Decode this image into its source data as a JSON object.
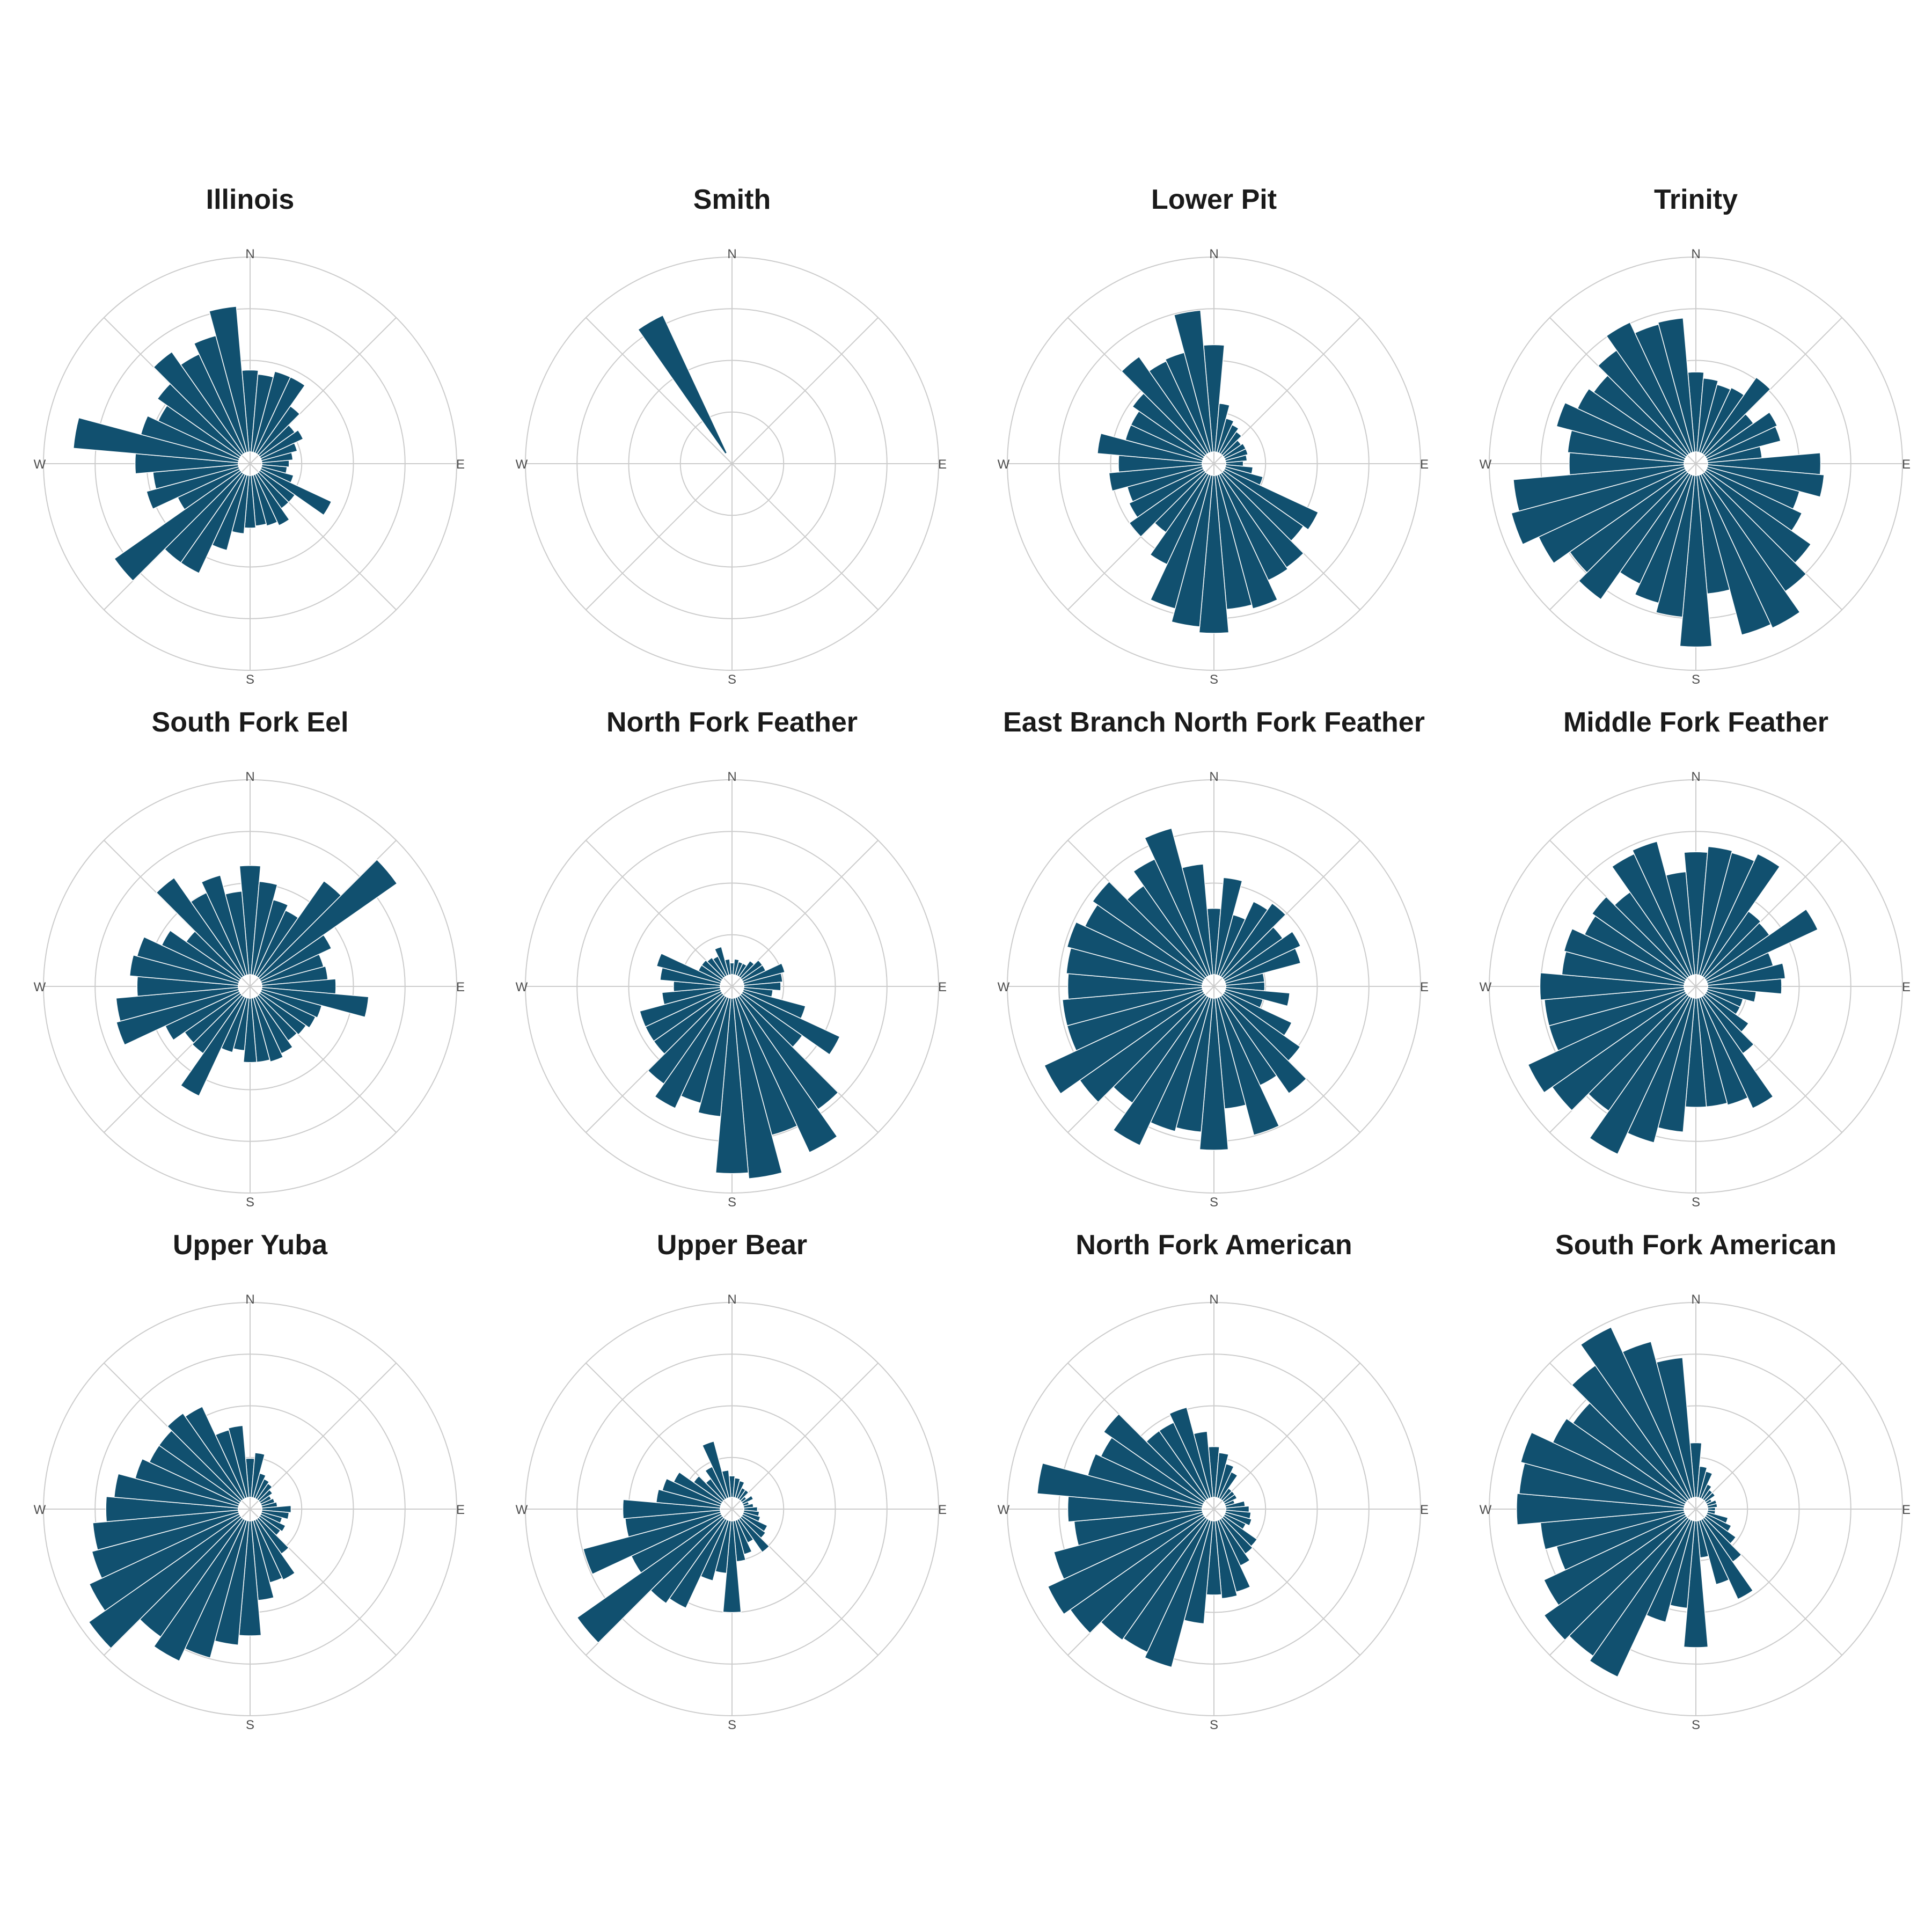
{
  "chart_data": {
    "type": "polar-bar",
    "bar_color": "#11506f",
    "grid_color": "#cccccc",
    "compass_labels": [
      "N",
      "E",
      "S",
      "W"
    ],
    "directions_deg": [
      0,
      10,
      20,
      30,
      40,
      50,
      60,
      70,
      80,
      90,
      100,
      110,
      120,
      130,
      140,
      150,
      160,
      170,
      180,
      190,
      200,
      210,
      220,
      230,
      240,
      250,
      260,
      270,
      280,
      290,
      300,
      310,
      320,
      330,
      340,
      350
    ],
    "radial_max": 1.0,
    "grid_rings": 4,
    "panels": [
      {
        "title": "Illinois",
        "values": [
          0.42,
          0.4,
          0.43,
          0.43,
          0.3,
          0.22,
          0.24,
          0.19,
          0.16,
          0.14,
          0.13,
          0.17,
          0.4,
          0.22,
          0.22,
          0.29,
          0.27,
          0.26,
          0.27,
          0.3,
          0.4,
          0.56,
          0.56,
          0.79,
          0.35,
          0.49,
          0.44,
          0.53,
          0.85,
          0.52,
          0.46,
          0.52,
          0.64,
          0.56,
          0.62,
          0.75
        ]
      },
      {
        "title": "Smith",
        "values": [
          0,
          0,
          0,
          0,
          0,
          0,
          0,
          0,
          0,
          0,
          0,
          0,
          0,
          0,
          0,
          0,
          0,
          0,
          0,
          0,
          0,
          0,
          0,
          0,
          0,
          0,
          0,
          0,
          0,
          0,
          0,
          0,
          0,
          0.78,
          0,
          0
        ]
      },
      {
        "title": "Lower Pit",
        "values": [
          0.55,
          0.25,
          0.18,
          0.16,
          0.14,
          0.11,
          0.12,
          0.12,
          0.11,
          0.09,
          0.14,
          0.2,
          0.53,
          0.5,
          0.59,
          0.6,
          0.71,
          0.69,
          0.81,
          0.78,
          0.71,
          0.51,
          0.37,
          0.47,
          0.42,
          0.4,
          0.48,
          0.43,
          0.54,
          0.41,
          0.41,
          0.45,
          0.61,
          0.52,
          0.53,
          0.73
        ]
      },
      {
        "title": "Trinity",
        "values": [
          0.41,
          0.38,
          0.36,
          0.37,
          0.48,
          0.3,
          0.4,
          0.39,
          0.28,
          0.58,
          0.6,
          0.49,
          0.54,
          0.66,
          0.74,
          0.87,
          0.85,
          0.61,
          0.88,
          0.73,
          0.68,
          0.62,
          0.79,
          0.73,
          0.83,
          0.92,
          0.88,
          0.59,
          0.6,
          0.68,
          0.61,
          0.58,
          0.65,
          0.74,
          0.68,
          0.69
        ]
      },
      {
        "title": "South Fork Eel",
        "values": [
          0.56,
          0.48,
          0.4,
          0.37,
          0.6,
          0.86,
          0.4,
          0.33,
          0.34,
          0.38,
          0.55,
          0.32,
          0.31,
          0.29,
          0.28,
          0.32,
          0.34,
          0.33,
          0.33,
          0.27,
          0.29,
          0.56,
          0.36,
          0.35,
          0.42,
          0.65,
          0.63,
          0.52,
          0.56,
          0.54,
          0.44,
          0.34,
          0.62,
          0.47,
          0.53,
          0.43
        ]
      },
      {
        "title": "North Fork Feather",
        "values": [
          0.06,
          0.08,
          0.07,
          0.07,
          0.1,
          0.13,
          0.13,
          0.22,
          0.2,
          0.19,
          0.15,
          0.33,
          0.55,
          0.38,
          0.71,
          0.88,
          0.73,
          0.93,
          0.9,
          0.61,
          0.56,
          0.63,
          0.55,
          0.43,
          0.43,
          0.43,
          0.3,
          0.24,
          0.31,
          0.34,
          0.13,
          0.13,
          0.12,
          0.11,
          0.15,
          0.08
        ]
      },
      {
        "title": "East Branch North Fork Feather",
        "values": [
          0.34,
          0.5,
          0.32,
          0.42,
          0.46,
          0.37,
          0.43,
          0.4,
          0.2,
          0.2,
          0.33,
          0.2,
          0.38,
          0.48,
          0.61,
          0.5,
          0.73,
          0.57,
          0.78,
          0.69,
          0.71,
          0.84,
          0.67,
          0.78,
          0.9,
          0.72,
          0.72,
          0.69,
          0.7,
          0.72,
          0.67,
          0.7,
          0.57,
          0.66,
          0.78,
          0.57
        ]
      },
      {
        "title": "Middle Fork Feather",
        "values": [
          0.63,
          0.66,
          0.65,
          0.69,
          0.41,
          0.4,
          0.63,
          0.35,
          0.4,
          0.38,
          0.25,
          0.19,
          0.19,
          0.27,
          0.36,
          0.63,
          0.57,
          0.56,
          0.56,
          0.69,
          0.77,
          0.89,
          0.72,
          0.84,
          0.89,
          0.72,
          0.72,
          0.74,
          0.63,
          0.64,
          0.57,
          0.59,
          0.53,
          0.69,
          0.71,
          0.53
        ]
      },
      {
        "title": "Upper Yuba",
        "values": [
          0.2,
          0.23,
          0.13,
          0.11,
          0.1,
          0.08,
          0.06,
          0.07,
          0.08,
          0.15,
          0.14,
          0.11,
          0.14,
          0.13,
          0.22,
          0.34,
          0.33,
          0.41,
          0.59,
          0.64,
          0.73,
          0.8,
          0.74,
          0.95,
          0.85,
          0.78,
          0.75,
          0.68,
          0.64,
          0.55,
          0.51,
          0.51,
          0.54,
          0.52,
          0.36,
          0.37
        ]
      },
      {
        "title": "Upper Bear",
        "values": [
          0.11,
          0.1,
          0.09,
          0.06,
          0.06,
          0.03,
          0.06,
          0.03,
          0.05,
          0.07,
          0.08,
          0.09,
          0.14,
          0.15,
          0.21,
          0.13,
          0.18,
          0.21,
          0.47,
          0.27,
          0.32,
          0.5,
          0.53,
          0.91,
          0.51,
          0.73,
          0.49,
          0.5,
          0.33,
          0.31,
          0.27,
          0.18,
          0.13,
          0.18,
          0.3,
          0.14
        ]
      },
      {
        "title": "North Fork American",
        "values": [
          0.26,
          0.23,
          0.18,
          0.15,
          0.07,
          0.07,
          0.07,
          0.05,
          0.1,
          0.12,
          0.13,
          0.14,
          0.12,
          0.21,
          0.22,
          0.26,
          0.38,
          0.4,
          0.38,
          0.53,
          0.78,
          0.75,
          0.76,
          0.84,
          0.88,
          0.79,
          0.66,
          0.69,
          0.85,
          0.61,
          0.58,
          0.63,
          0.43,
          0.43,
          0.48,
          0.34
        ]
      },
      {
        "title": "South Fork American",
        "values": [
          0.28,
          0.16,
          0.14,
          0.08,
          0.06,
          0.06,
          0.03,
          0.05,
          0.05,
          0.04,
          0.04,
          0.11,
          0.14,
          0.19,
          0.27,
          0.45,
          0.34,
          0.19,
          0.65,
          0.45,
          0.54,
          0.89,
          0.86,
          0.89,
          0.8,
          0.68,
          0.74,
          0.86,
          0.85,
          0.87,
          0.75,
          0.71,
          0.84,
          0.97,
          0.83,
          0.72
        ]
      }
    ]
  }
}
